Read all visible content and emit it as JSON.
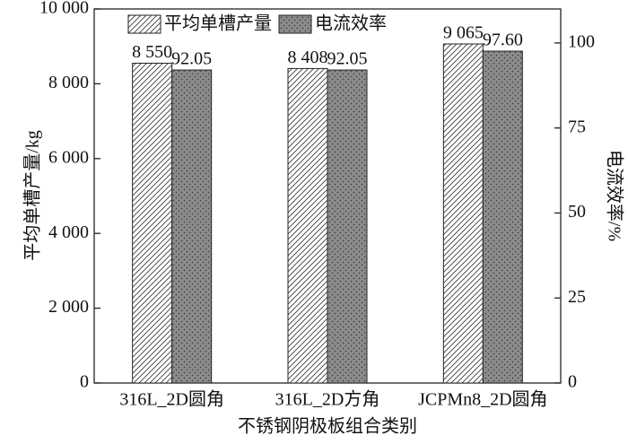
{
  "chart_data": {
    "type": "bar",
    "xlabel": "不锈钢阴极板组合类别",
    "ylabel": "平均单槽产量/kg",
    "y2label": "电流效率/%",
    "categories": [
      "316L_2D圆角",
      "316L_2D方角",
      "JCPMn8_2D圆角"
    ],
    "series": [
      {
        "name": "平均单槽产量",
        "color": "#ffffff",
        "pattern": "hatch",
        "values": [
          8550,
          8408,
          9065
        ],
        "value_labels": [
          "8 550",
          "8 408",
          "9 065"
        ]
      },
      {
        "name": "电流效率",
        "color": "#8c8c8c",
        "pattern": "dots",
        "axis": "y2",
        "values": [
          92.05,
          92.05,
          97.6
        ],
        "value_labels": [
          "92.05",
          "92.05",
          "97.60"
        ]
      }
    ],
    "ylim": [
      0,
      10000
    ],
    "yticks": [
      0,
      {
        "value": 2000,
        "label": "2 000"
      },
      {
        "value": 4000,
        "label": "4 000"
      },
      {
        "value": 6000,
        "label": "6 000"
      },
      {
        "value": 8000,
        "label": "8 000"
      },
      {
        "value": 10000,
        "label": "10 000"
      }
    ],
    "y2lim": [
      0,
      110
    ],
    "y2ticks": [
      0,
      25,
      50,
      75,
      100
    ],
    "legend": "top"
  }
}
